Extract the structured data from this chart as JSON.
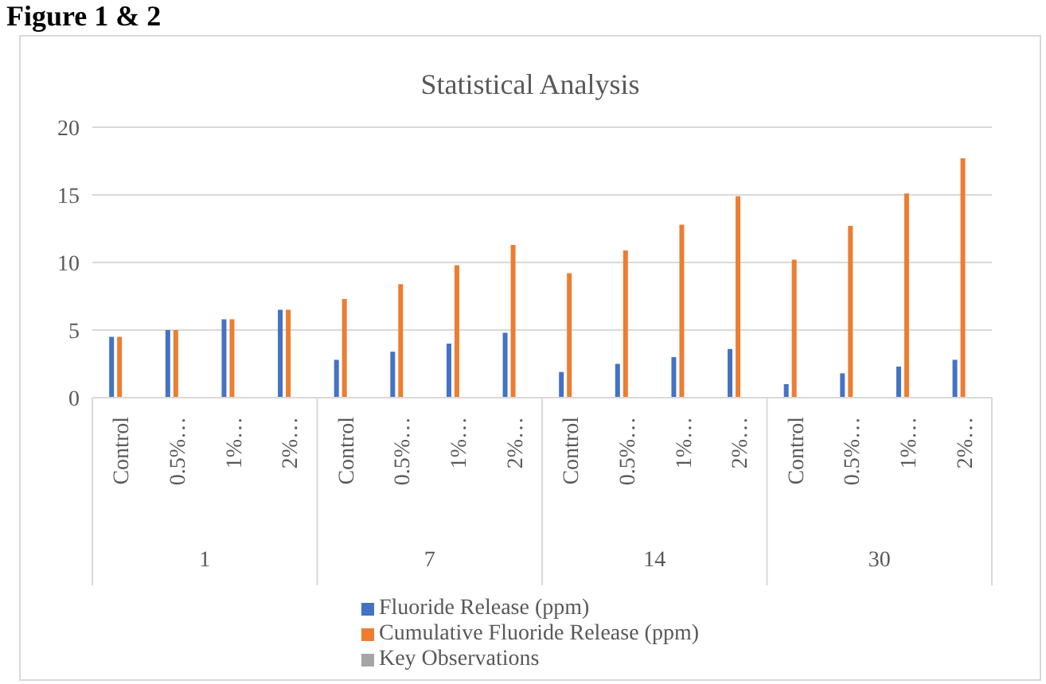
{
  "chart_data": {
    "type": "bar",
    "title": "Statistical Analysis",
    "annotations": [
      "Figure 1 & 2",
      "1",
      "7",
      "14",
      "30"
    ],
    "categories": [
      "Control",
      "0.5%…",
      "1%…",
      "2%…",
      "Control",
      "0.5%…",
      "1%…",
      "2%…",
      "Control",
      "0.5%…",
      "1%…",
      "2%…",
      "Control",
      "0.5%…",
      "1%…",
      "2%…"
    ],
    "series": [
      {
        "name": "Fluoride Release (ppm)",
        "color": "#4472c4",
        "values": [
          4.5,
          5,
          5.8,
          6.5,
          2.8,
          3.4,
          4,
          4.8,
          1.9,
          2.5,
          3,
          3.6,
          1,
          1.8,
          2.3,
          2.8
        ]
      },
      {
        "name": "Cumulative Fluoride Release (ppm)",
        "color": "#ed7d31",
        "values": [
          4.5,
          5,
          5.8,
          6.5,
          7.3,
          8.4,
          9.8,
          11.3,
          9.2,
          10.9,
          12.8,
          14.9,
          10.2,
          12.7,
          15.1,
          17.7
        ]
      },
      {
        "name": "Key Observations",
        "color": "#a5a5a5",
        "values": [
          null,
          null,
          null,
          null,
          null,
          null,
          null,
          null,
          null,
          null,
          null,
          null,
          null,
          null,
          null,
          null
        ]
      }
    ],
    "ylim": [
      0,
      20
    ],
    "yticks": [
      0,
      5,
      10,
      15,
      20
    ],
    "grid": "y",
    "legend": "bottom"
  }
}
